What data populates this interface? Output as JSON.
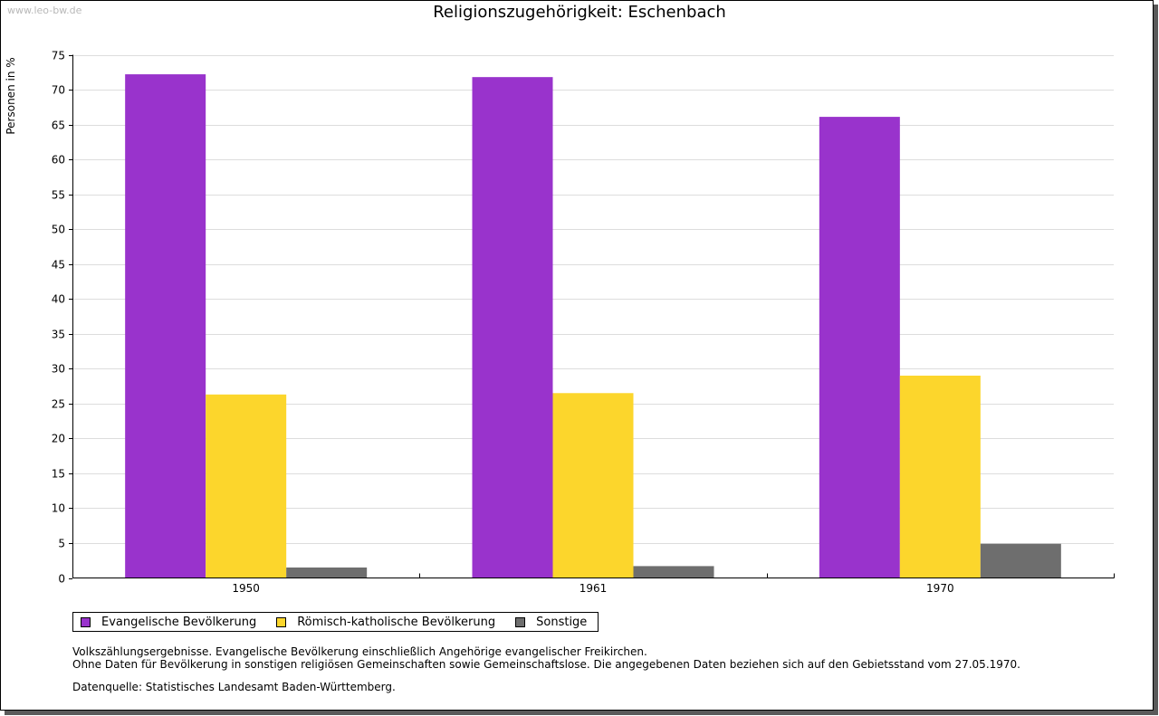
{
  "watermark": "www.leo-bw.de",
  "chart_data": {
    "type": "bar",
    "title": "Religionszugehörigkeit: Eschenbach",
    "xlabel": "",
    "ylabel": "Personen in %",
    "categories": [
      "1950",
      "1961",
      "1970"
    ],
    "series": [
      {
        "name": "Evangelische Bevölkerung",
        "color": "#9933cc",
        "values": [
          72.2,
          71.8,
          66.1
        ]
      },
      {
        "name": "Römisch-katholische Bevölkerung",
        "color": "#fcd62c",
        "values": [
          26.3,
          26.5,
          29.0
        ]
      },
      {
        "name": "Sonstige",
        "color": "#6e6e6e",
        "values": [
          1.5,
          1.7,
          4.9
        ]
      }
    ],
    "ylim": [
      0,
      75
    ],
    "yticks": [
      0,
      5,
      10,
      15,
      20,
      25,
      30,
      35,
      40,
      45,
      50,
      55,
      60,
      65,
      70,
      75
    ],
    "grid": true,
    "legend_position": "bottom-left"
  },
  "notes": {
    "line1": "Volkszählungsergebnisse. Evangelische Bevölkerung einschließlich Angehörige evangelischer Freikirchen.",
    "line2": "Ohne Daten für Bevölkerung in sonstigen religiösen Gemeinschaften sowie Gemeinschaftslose. Die angegebenen Daten beziehen sich auf den Gebietsstand vom 27.05.1970.",
    "source": "Datenquelle: Statistisches Landesamt Baden-Württemberg."
  }
}
